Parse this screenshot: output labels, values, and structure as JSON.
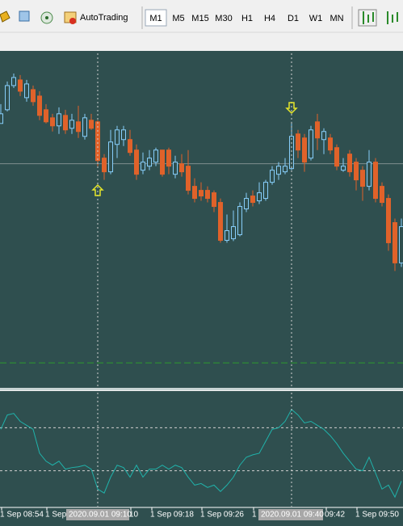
{
  "toolbar": {
    "autotrading": "AutoTrading",
    "timeframes": [
      "M1",
      "M5",
      "M15",
      "M30",
      "H1",
      "H4",
      "D1",
      "W1",
      "MN"
    ]
  },
  "time_axis": {
    "labels": [
      "1 Sep 08:54",
      "1 Sep",
      "10",
      "1 Sep 09:18",
      "1 Sep 09:26",
      "1",
      "09:42",
      "1 Sep 09:50"
    ],
    "highlights": [
      "2020.09.01 09:10",
      "2020.09.01 09:40"
    ]
  },
  "chart_data": [
    {
      "type": "candlestick",
      "ylim": [
        0,
        413
      ],
      "up_color": "#87cefa",
      "down_color": "#e0622a",
      "lines": [
        {
          "value": 276,
          "color": "#7f8f8f",
          "dashed": false
        },
        {
          "value": 29,
          "color": "#2e9a2e",
          "dashed": true
        }
      ],
      "open": [
        326,
        343,
        373,
        380,
        358,
        368,
        360,
        343,
        333,
        323,
        336,
        320,
        328,
        310,
        330,
        328,
        283,
        266,
        300,
        306,
        306,
        293,
        268,
        273,
        278,
        293,
        293,
        263,
        276,
        273,
        248,
        243,
        243,
        240,
        228,
        181,
        183,
        188,
        220,
        236,
        230,
        233,
        253,
        263,
        266,
        270,
        313,
        308,
        283,
        328,
        306,
        308,
        296,
        268,
        288,
        278,
        268,
        248,
        278,
        248,
        233,
        203,
        153
      ],
      "high": [
        350,
        378,
        388,
        386,
        380,
        373,
        366,
        350,
        338,
        346,
        343,
        338,
        348,
        338,
        338,
        330,
        288,
        318,
        323,
        323,
        318,
        300,
        290,
        293,
        296,
        293,
        296,
        286,
        288,
        293,
        258,
        253,
        248,
        243,
        233,
        213,
        218,
        228,
        240,
        243,
        253,
        256,
        273,
        278,
        283,
        328,
        318,
        313,
        323,
        338,
        320,
        313,
        300,
        283,
        293,
        283,
        273,
        293,
        283,
        253,
        238,
        208,
        208
      ],
      "low": [
        326,
        341,
        370,
        360,
        353,
        348,
        330,
        326,
        316,
        313,
        313,
        313,
        308,
        306,
        318,
        273,
        256,
        263,
        283,
        298,
        286,
        256,
        263,
        268,
        273,
        260,
        263,
        258,
        260,
        238,
        228,
        230,
        228,
        216,
        178,
        178,
        180,
        186,
        216,
        223,
        226,
        230,
        250,
        256,
        263,
        268,
        283,
        266,
        280,
        293,
        288,
        288,
        268,
        266,
        260,
        243,
        230,
        243,
        228,
        223,
        168,
        143,
        148
      ],
      "close": [
        338,
        373,
        383,
        366,
        375,
        353,
        336,
        328,
        323,
        338,
        318,
        330,
        316,
        333,
        320,
        280,
        266,
        303,
        318,
        318,
        290,
        263,
        278,
        283,
        293,
        263,
        273,
        278,
        266,
        243,
        233,
        236,
        233,
        223,
        181,
        193,
        198,
        223,
        233,
        228,
        240,
        253,
        268,
        273,
        273,
        310,
        293,
        278,
        318,
        308,
        316,
        293,
        273,
        273,
        266,
        256,
        248,
        278,
        233,
        228,
        178,
        153,
        198
      ]
    },
    {
      "type": "line",
      "ylim": [
        0,
        143
      ],
      "color": "#20b2aa",
      "levels": [
        99,
        45
      ],
      "values": [
        97,
        115,
        117,
        107,
        102,
        97,
        67,
        57,
        52,
        57,
        47,
        49,
        50,
        52,
        47,
        22,
        17,
        37,
        52,
        49,
        37,
        52,
        37,
        47,
        47,
        52,
        47,
        52,
        49,
        37,
        27,
        29,
        24,
        27,
        19,
        27,
        37,
        52,
        62,
        65,
        67,
        82,
        97,
        99,
        107,
        122,
        115,
        105,
        107,
        102,
        97,
        89,
        79,
        67,
        57,
        47,
        45,
        62,
        42,
        22,
        27,
        12,
        32
      ]
    }
  ]
}
